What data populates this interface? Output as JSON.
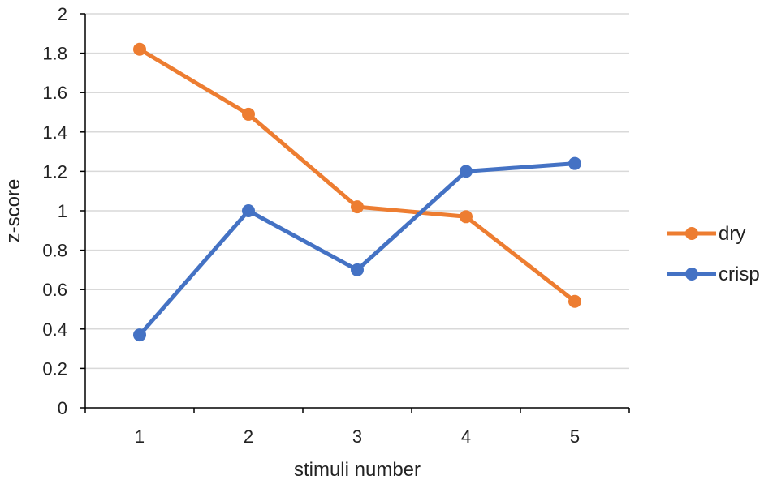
{
  "chart_data": {
    "type": "line",
    "x": [
      1,
      2,
      3,
      4,
      5
    ],
    "xlabel": "stimuli number",
    "ylabel": "z-score",
    "ylim": [
      0,
      2
    ],
    "yticks": [
      "0",
      "0.2",
      "0.4",
      "0.6",
      "0.8",
      "1",
      "1.2",
      "1.4",
      "1.6",
      "1.8",
      "2"
    ],
    "xticks": [
      "1",
      "2",
      "3",
      "4",
      "5"
    ],
    "grid": "horizontal",
    "legend": "right",
    "series": [
      {
        "name": "dry",
        "color": "#ED7D31",
        "values": [
          1.82,
          1.49,
          1.02,
          0.97,
          0.54
        ]
      },
      {
        "name": "crisp",
        "color": "#4472C4",
        "values": [
          0.37,
          1.0,
          0.7,
          1.2,
          1.24
        ]
      }
    ]
  }
}
